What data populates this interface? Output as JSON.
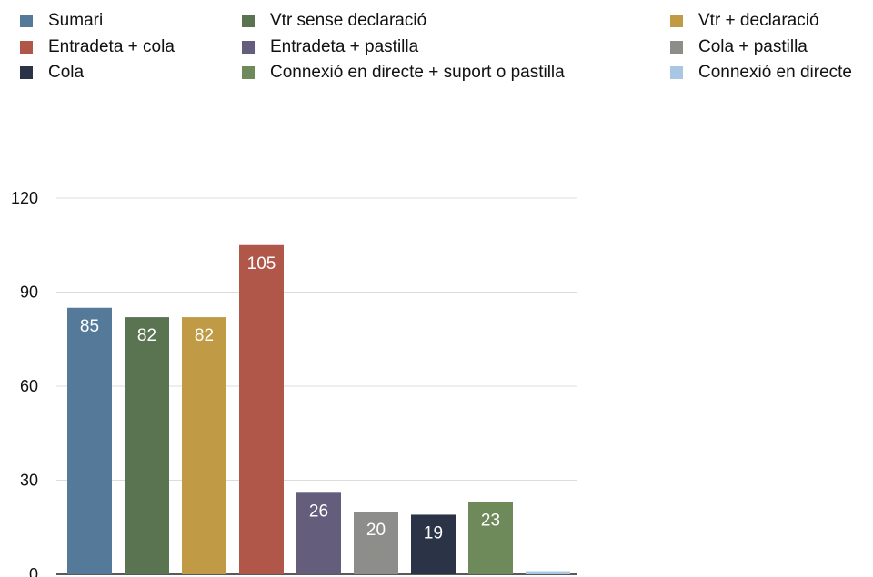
{
  "chart_data": {
    "type": "bar",
    "categories": [
      "Sumari",
      "Vtr sense declaració",
      "Vtr + declaració",
      "Entradeta + cola",
      "Entradeta + pastilla",
      "Cola + pastilla",
      "Cola",
      "Connexió en directe + suport o pastilla",
      "Connexió en directe"
    ],
    "values": [
      85,
      82,
      82,
      105,
      26,
      20,
      19,
      23,
      1
    ],
    "colors": [
      "#557a99",
      "#5a7350",
      "#c09a44",
      "#b0574a",
      "#655d7c",
      "#8d8d8a",
      "#2b3346",
      "#6f8a5a",
      "#a9c6e2"
    ],
    "ylim": [
      0,
      120
    ],
    "yticks": [
      0,
      30,
      60,
      90,
      120
    ],
    "grid": true,
    "legend_position": "top",
    "legend_order": [
      0,
      1,
      2,
      3,
      4,
      5,
      6,
      7,
      8
    ]
  }
}
